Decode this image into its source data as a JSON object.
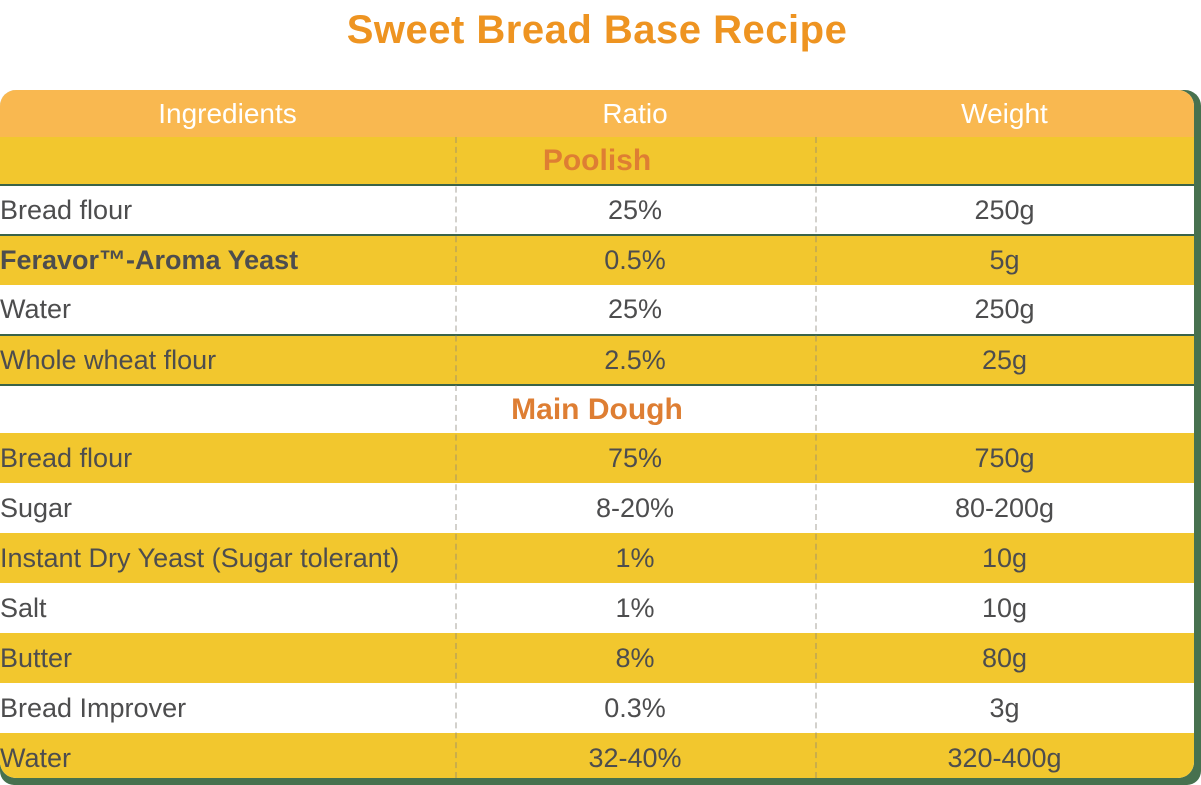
{
  "title": "Sweet Bread Base Recipe",
  "columns": [
    "Ingredients",
    "Ratio",
    "Weight"
  ],
  "sections": [
    {
      "label": "Poolish",
      "divider": true,
      "rows": [
        {
          "ingredient": "Bread flour",
          "ratio": "25%",
          "weight": "250g",
          "divider": true
        },
        {
          "ingredient": "Feravor™-Aroma Yeast",
          "ratio": "0.5%",
          "weight": "5g",
          "brand": true
        },
        {
          "ingredient": "Water",
          "ratio": "25%",
          "weight": "250g",
          "divider": true
        },
        {
          "ingredient": "Whole wheat flour",
          "ratio": "2.5%",
          "weight": "25g",
          "divider": true
        }
      ]
    },
    {
      "label": "Main Dough",
      "rows": [
        {
          "ingredient": "Bread flour",
          "ratio": "75%",
          "weight": "750g"
        },
        {
          "ingredient": "Sugar",
          "ratio": "8-20%",
          "weight": "80-200g"
        },
        {
          "ingredient": "Instant Dry Yeast (Sugar tolerant)",
          "ratio": "1%",
          "weight": "10g"
        },
        {
          "ingredient": "Salt",
          "ratio": "1%",
          "weight": "10g"
        },
        {
          "ingredient": "Butter",
          "ratio": "8%",
          "weight": "80g"
        },
        {
          "ingredient": "Bread Improver",
          "ratio": "0.3%",
          "weight": "3g"
        },
        {
          "ingredient": "Water",
          "ratio": "32-40%",
          "weight": "320-400g"
        }
      ]
    }
  ],
  "colors": {
    "title_orange": "#EE9421",
    "header_band_orange": "#F9B850",
    "row_yellow": "#F2C72E",
    "row_white": "#FFFFFF",
    "section_label_orange": "#DE7E33",
    "brand_text_orange": "#E9962E",
    "body_text_gray": "#4D4D4E",
    "rule_green": "#3A6349",
    "margin_green": "#47714F"
  }
}
